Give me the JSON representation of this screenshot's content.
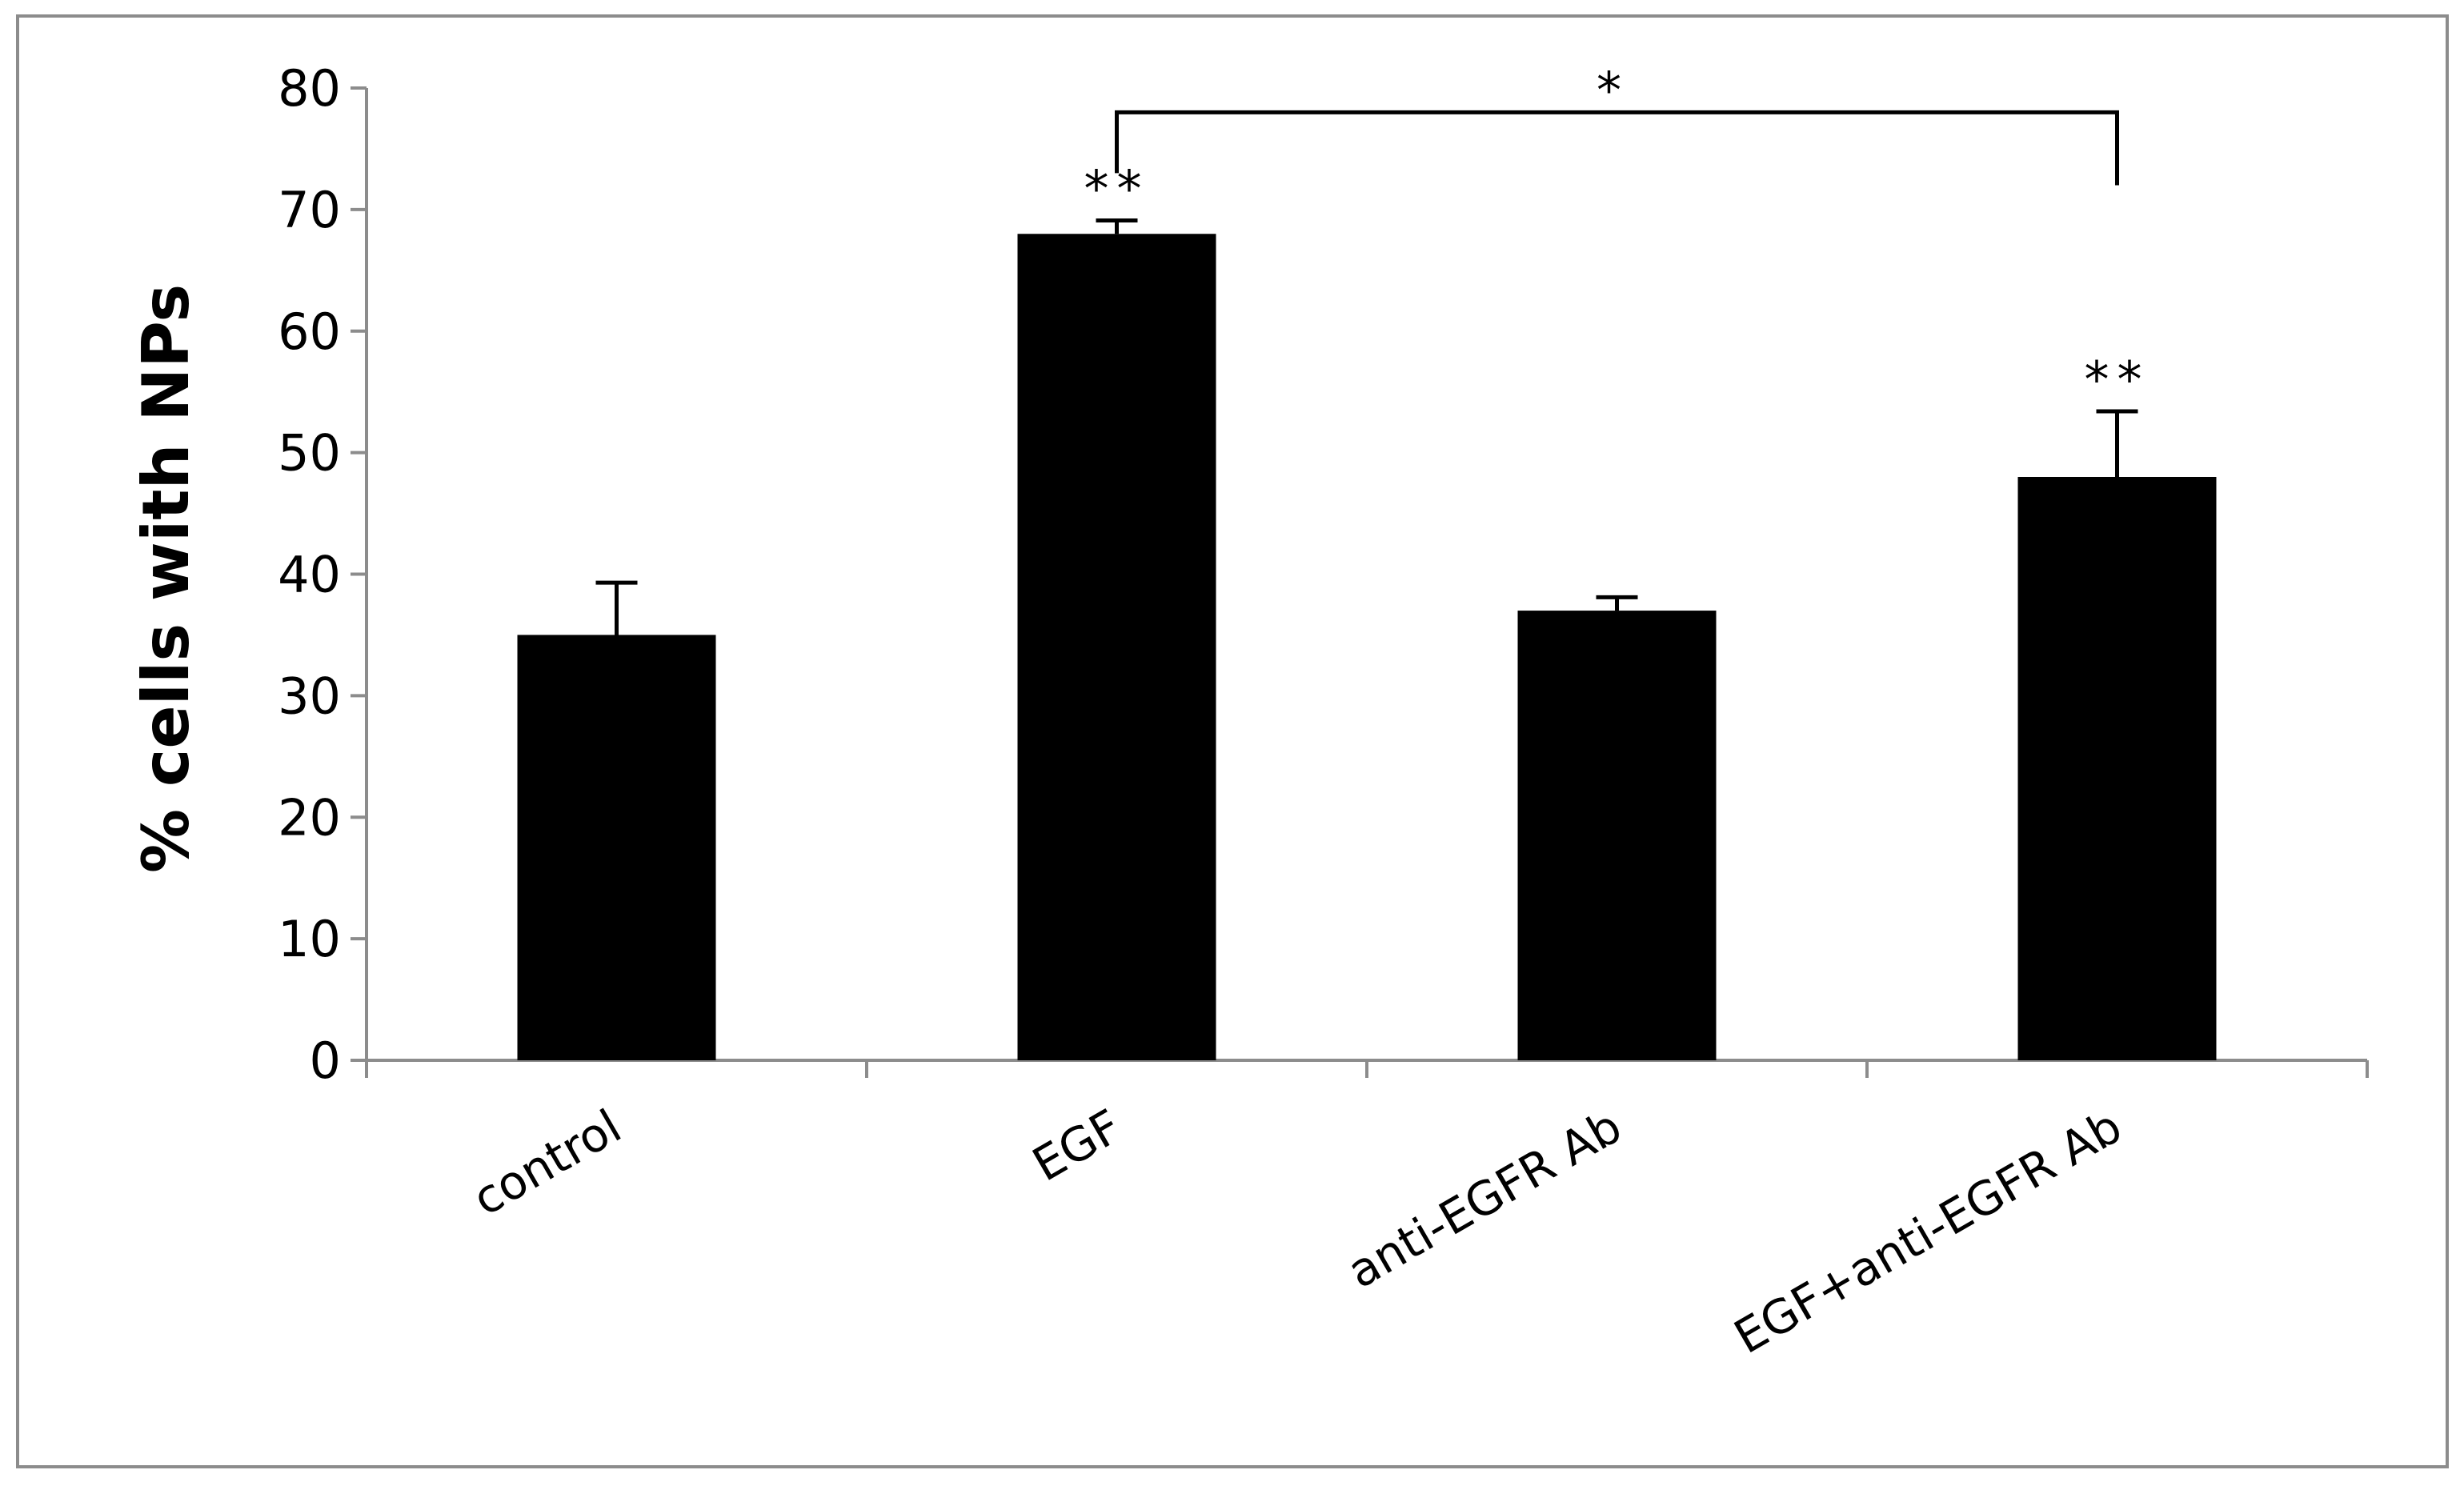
{
  "chart_data": {
    "type": "bar",
    "title": "",
    "xlabel": "",
    "ylabel": "% cells with NPs",
    "ylim": [
      0,
      80
    ],
    "yticks": [
      "0",
      "10",
      "20",
      "30",
      "40",
      "50",
      "60",
      "70",
      "80"
    ],
    "grid": false,
    "legend": "none",
    "categories": [
      "control",
      "EGF",
      "anti-EGFR Ab",
      "EGF+anti-EGFR Ab"
    ],
    "values": [
      35,
      68,
      37,
      48
    ],
    "errors": [
      4.3,
      1.1,
      1.1,
      5.4
    ],
    "bar_color": "#000000",
    "annotations": [
      "",
      "**",
      "",
      "**"
    ],
    "bracket": {
      "from": "EGF",
      "to": "EGF+anti-EGFR Ab",
      "label": "*"
    }
  }
}
